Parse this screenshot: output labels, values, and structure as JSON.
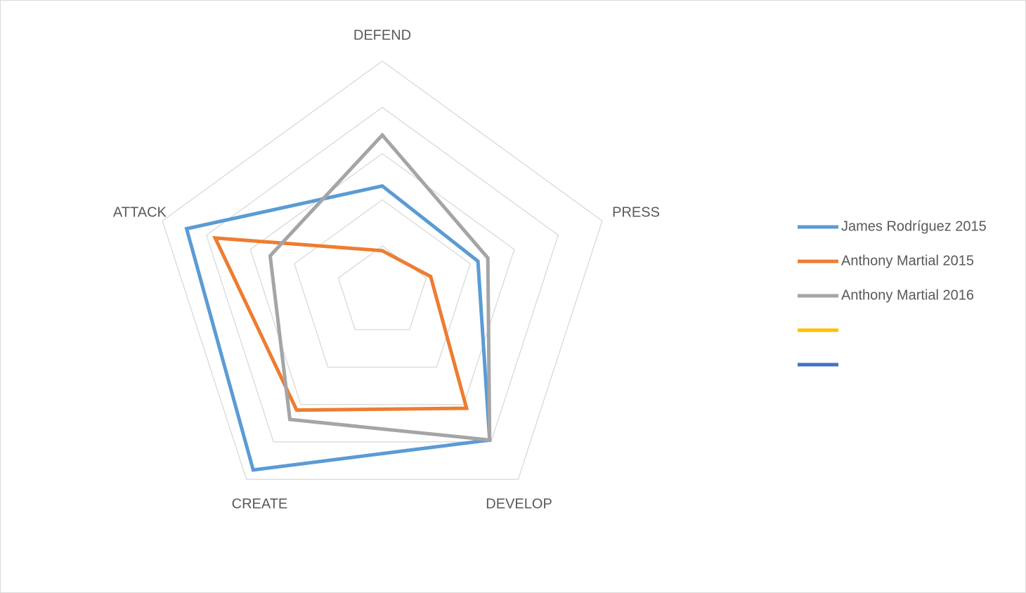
{
  "chart_data": {
    "type": "radar",
    "categories": [
      "DEFEND",
      "PRESS",
      "DEVELOP",
      "CREATE",
      "ATTACK"
    ],
    "series": [
      {
        "name": "James Rodríguez 2015",
        "color": "#5b9bd5",
        "values": [
          4.6,
          4.35,
          7.9,
          9.5,
          8.9
        ]
      },
      {
        "name": "Anthony Martial 2015",
        "color": "#ed7d31",
        "values": [
          1.8,
          2.2,
          6.2,
          6.3,
          7.6
        ]
      },
      {
        "name": "Anthony Martial 2016",
        "color": "#a5a5a5",
        "values": [
          6.8,
          4.8,
          7.9,
          6.8,
          5.1
        ]
      },
      {
        "name": null,
        "color": "#ffc000",
        "values": [
          null,
          null,
          null,
          null,
          null
        ]
      },
      {
        "name": null,
        "color": "#4472c4",
        "values": [
          null,
          null,
          null,
          null,
          null
        ]
      }
    ],
    "ylim": [
      0,
      10
    ],
    "yticks": [
      0,
      2,
      4,
      6,
      8,
      10
    ],
    "grid": true,
    "legend": "right"
  }
}
